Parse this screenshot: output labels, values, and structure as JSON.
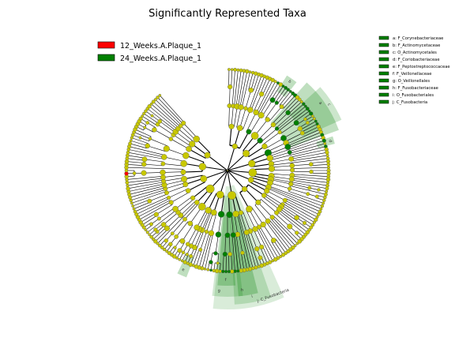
{
  "title": "Significantly Represented Taxa",
  "legend": [
    {
      "label": "12_Weeks.A.Plaque_1",
      "color": "#ff0000"
    },
    {
      "label": "24_Weeks.A.Plaque_1",
      "color": "#008000"
    }
  ],
  "key": [
    {
      "text": "a: F_Corynebacteriaceae"
    },
    {
      "text": "b: F_Actinomycetaceae"
    },
    {
      "text": "c: O_Actinomycetales"
    },
    {
      "text": "d: F_Coriobacteriaceae"
    },
    {
      "text": "e: F_Peptostreptococcaceae"
    },
    {
      "text": "f: F_Veillonellaceae"
    },
    {
      "text": "g: O_Veillonellales"
    },
    {
      "text": "h: F_Fusobacteriaceae"
    },
    {
      "text": "i: O_Fusobacteriales"
    },
    {
      "text": "j: C_Fusobacteria"
    }
  ],
  "highlights": [
    {
      "label": "a",
      "color": "#008000"
    },
    {
      "label": "b",
      "color": "#008000"
    },
    {
      "label": "c",
      "color": "#008000"
    },
    {
      "label": "d",
      "color": "#008000"
    },
    {
      "label": "e",
      "color": "#008000"
    },
    {
      "label": "f",
      "color": "#008000"
    },
    {
      "label": "g",
      "color": "#008000"
    },
    {
      "label": "h",
      "color": "#008000"
    },
    {
      "label": "i",
      "color": "#008000"
    },
    {
      "label": "j: C_Fusobacteria",
      "color": "#008000"
    }
  ],
  "colors": {
    "node_default": "#c8c800",
    "node_enriched": "#008000",
    "node_red": "#ff0000",
    "edge": "#000000"
  }
}
